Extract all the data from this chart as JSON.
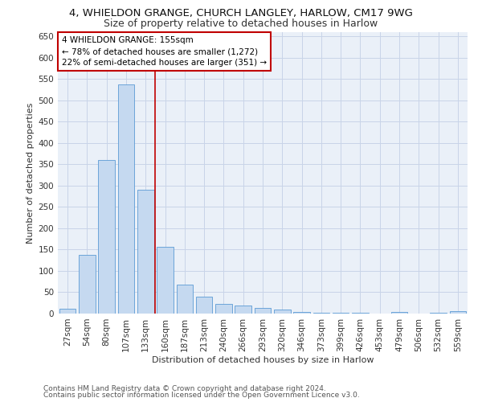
{
  "title1": "4, WHIELDON GRANGE, CHURCH LANGLEY, HARLOW, CM17 9WG",
  "title2": "Size of property relative to detached houses in Harlow",
  "xlabel": "Distribution of detached houses by size in Harlow",
  "ylabel": "Number of detached properties",
  "bar_labels": [
    "27sqm",
    "54sqm",
    "80sqm",
    "107sqm",
    "133sqm",
    "160sqm",
    "187sqm",
    "213sqm",
    "240sqm",
    "266sqm",
    "293sqm",
    "320sqm",
    "346sqm",
    "373sqm",
    "399sqm",
    "426sqm",
    "453sqm",
    "479sqm",
    "506sqm",
    "532sqm",
    "559sqm"
  ],
  "bar_values": [
    12,
    137,
    360,
    537,
    290,
    157,
    67,
    40,
    22,
    19,
    14,
    10,
    3,
    2,
    1,
    1,
    0,
    4,
    0,
    1,
    5
  ],
  "bar_color": "#c5d9f0",
  "bar_edge_color": "#5b9bd5",
  "vline_pos": 4.5,
  "vline_color": "#c00000",
  "annotation_text": "4 WHIELDON GRANGE: 155sqm\n← 78% of detached houses are smaller (1,272)\n22% of semi-detached houses are larger (351) →",
  "annotation_box_color": "#ffffff",
  "annotation_box_edge": "#c00000",
  "ylim": [
    0,
    660
  ],
  "yticks": [
    0,
    50,
    100,
    150,
    200,
    250,
    300,
    350,
    400,
    450,
    500,
    550,
    600,
    650
  ],
  "footer1": "Contains HM Land Registry data © Crown copyright and database right 2024.",
  "footer2": "Contains public sector information licensed under the Open Government Licence v3.0.",
  "bg_color": "#ffffff",
  "plot_bg_color": "#eaf0f8",
  "grid_color": "#c8d4e8",
  "title1_fontsize": 9.5,
  "title2_fontsize": 9,
  "axis_label_fontsize": 8,
  "tick_fontsize": 7.5,
  "annotation_fontsize": 7.5,
  "footer_fontsize": 6.5
}
